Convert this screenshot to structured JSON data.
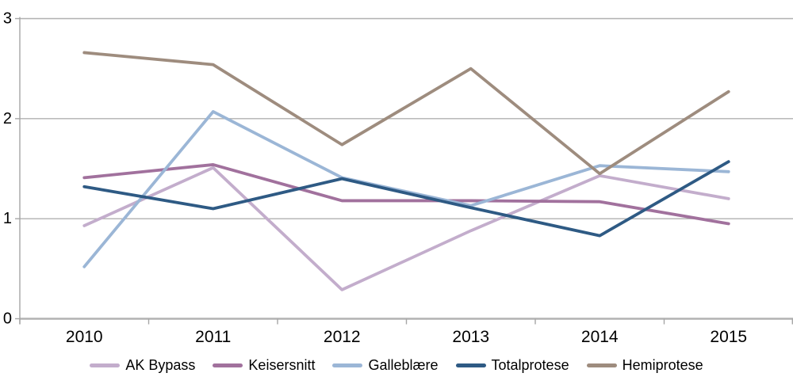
{
  "chart_data": {
    "type": "line",
    "title": "",
    "xlabel": "",
    "ylabel": "",
    "categories": [
      "2010",
      "2011",
      "2012",
      "2013",
      "2014",
      "2015"
    ],
    "series": [
      {
        "name": "AK Bypass",
        "color": "#c3adcc",
        "values": [
          0.93,
          1.51,
          0.29,
          0.88,
          1.43,
          1.2
        ]
      },
      {
        "name": "Keisersnitt",
        "color": "#a1719d",
        "values": [
          1.41,
          1.54,
          1.18,
          1.18,
          1.17,
          0.95
        ]
      },
      {
        "name": "Galleblære",
        "color": "#9bb6d6",
        "values": [
          0.52,
          2.07,
          1.41,
          1.13,
          1.53,
          1.47
        ]
      },
      {
        "name": "Totalprotese",
        "color": "#2e5a84",
        "values": [
          1.32,
          1.1,
          1.4,
          1.11,
          0.83,
          1.57
        ]
      },
      {
        "name": "Hemiprotese",
        "color": "#9e8c7e",
        "values": [
          2.66,
          2.54,
          1.74,
          2.5,
          1.45,
          2.27
        ]
      }
    ],
    "ylim": [
      0,
      3
    ],
    "yticks": [
      "0",
      "1",
      "2",
      "3"
    ],
    "grid": true,
    "legend_position": "bottom"
  },
  "style_colors": {
    "gridline": "#b0b0b0",
    "x_axis_line": "#b2b2b2",
    "y_axis_line": "#a6a6a6",
    "tick": "#a6a6a6",
    "label_text": "#000000",
    "background": "#ffffff"
  }
}
